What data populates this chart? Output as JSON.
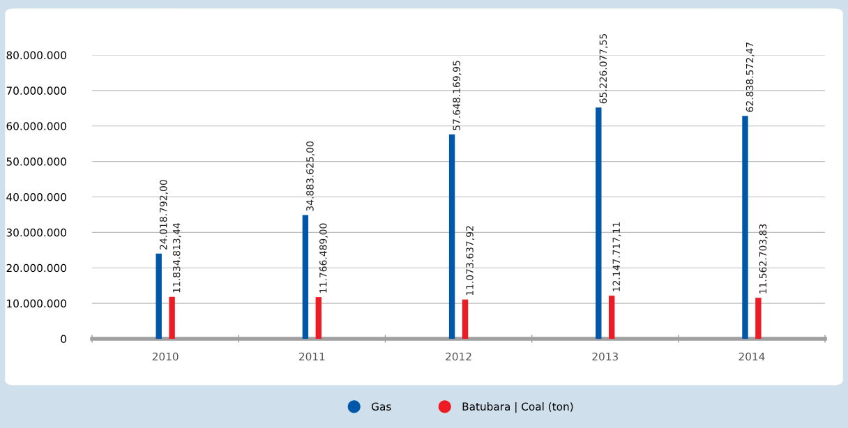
{
  "chart_data": {
    "type": "bar",
    "categories": [
      "2010",
      "2011",
      "2012",
      "2013",
      "2014"
    ],
    "series": [
      {
        "name": "Gas",
        "color": "#0057a8",
        "values": [
          24018792.0,
          34883625.0,
          57648169.95,
          65226077.55,
          62838572.47
        ],
        "value_labels": [
          "24.018.792,00",
          "34.883.625,00",
          "57.648.169,95",
          "65.226.077,55",
          "62.838.572,47"
        ]
      },
      {
        "name": "Batubara | Coal (ton)",
        "color": "#ed1c24",
        "values": [
          11834813.44,
          11766489.0,
          11073637.92,
          12147717.11,
          11562703.83
        ],
        "value_labels": [
          "11.834.813,44",
          "11.766.489,00",
          "11.073.637,92",
          "12.147.717,11",
          "11.562.703,83"
        ]
      }
    ],
    "ylim": [
      0,
      80000000
    ],
    "yticks": [
      {
        "value": 0,
        "label": "0"
      },
      {
        "value": 10000000,
        "label": "10.000.000"
      },
      {
        "value": 20000000,
        "label": "20.000.000"
      },
      {
        "value": 30000000,
        "label": "30.000.000"
      },
      {
        "value": 40000000,
        "label": "40.000.000"
      },
      {
        "value": 50000000,
        "label": "50.000.000"
      },
      {
        "value": 60000000,
        "label": "60.000.000"
      },
      {
        "value": 70000000,
        "label": "70.000.000"
      },
      {
        "value": 80000000,
        "label": "80.000.000"
      }
    ],
    "grid": "y",
    "legend": "bottom"
  }
}
